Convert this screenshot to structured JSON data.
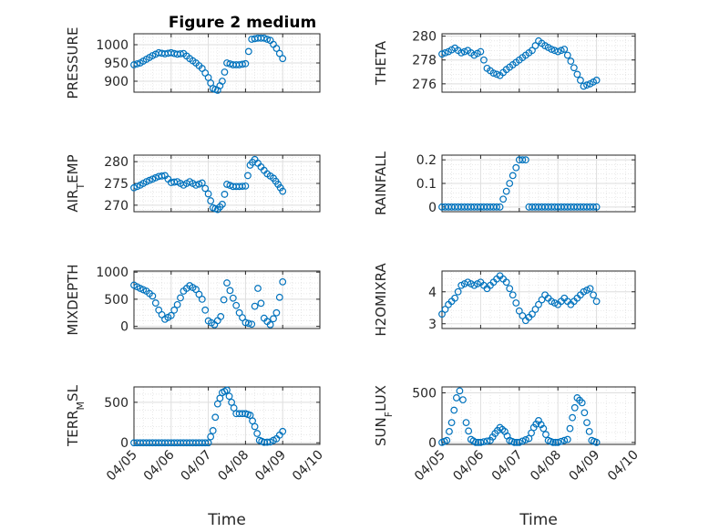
{
  "figure_title": "Figure 2 medium",
  "chart_data": [
    {
      "type": "scatter",
      "ylabel": "PRESSURE",
      "xlabel": "",
      "ylim": [
        870,
        1030
      ],
      "yticks": [
        900,
        950,
        1000
      ],
      "xlim": [
        "2016-04-05",
        "2016-04-10"
      ],
      "xticks": [
        "04/05",
        "04/06",
        "04/07",
        "04/08",
        "04/09",
        "04/10"
      ],
      "grid": true,
      "x": [
        "2016-04-05 00:00",
        "2016-04-05 04:00",
        "2016-04-05 08:00",
        "2016-04-05 12:00",
        "2016-04-05 16:00",
        "2016-04-05 20:00",
        "2016-04-06 00:00",
        "2016-04-06 04:00",
        "2016-04-06 08:00",
        "2016-04-06 12:00",
        "2016-04-06 16:00",
        "2016-04-06 20:00",
        "2016-04-07 00:00",
        "2016-04-07 03:00",
        "2016-04-07 06:00",
        "2016-04-07 09:00",
        "2016-04-07 12:00",
        "2016-04-07 16:00",
        "2016-04-07 20:00",
        "2016-04-08 00:00",
        "2016-04-08 04:00",
        "2016-04-08 08:00",
        "2016-04-08 12:00",
        "2016-04-08 16:00",
        "2016-04-08 20:00",
        "2016-04-09 00:00"
      ],
      "y": [
        945,
        950,
        960,
        970,
        978,
        975,
        978,
        974,
        976,
        962,
        950,
        935,
        910,
        880,
        875,
        900,
        950,
        945,
        945,
        948,
        1015,
        1018,
        1018,
        1012,
        990,
        962
      ]
    },
    {
      "type": "scatter",
      "ylabel": "THETA",
      "xlabel": "",
      "ylim": [
        275.3,
        280.2
      ],
      "yticks": [
        276,
        278,
        280
      ],
      "xlim": [
        "2016-04-05",
        "2016-04-10"
      ],
      "xticks": [
        "04/05",
        "04/06",
        "04/07",
        "04/08",
        "04/09",
        "04/10"
      ],
      "grid": true,
      "x": [
        "2016-04-05 00:00",
        "2016-04-05 04:00",
        "2016-04-05 08:00",
        "2016-04-05 12:00",
        "2016-04-05 16:00",
        "2016-04-05 20:00",
        "2016-04-06 00:00",
        "2016-04-06 04:00",
        "2016-04-06 08:00",
        "2016-04-06 12:00",
        "2016-04-06 16:00",
        "2016-04-06 20:00",
        "2016-04-07 00:00",
        "2016-04-07 04:00",
        "2016-04-07 08:00",
        "2016-04-07 12:00",
        "2016-04-07 16:00",
        "2016-04-07 20:00",
        "2016-04-08 00:00",
        "2016-04-08 04:00",
        "2016-04-08 08:00",
        "2016-04-08 12:00",
        "2016-04-08 16:00",
        "2016-04-08 20:00",
        "2016-04-09 00:00"
      ],
      "y": [
        278.5,
        278.7,
        279.0,
        278.6,
        278.8,
        278.4,
        278.7,
        277.3,
        276.9,
        276.7,
        277.2,
        277.6,
        278.0,
        278.4,
        278.8,
        279.6,
        279.2,
        278.9,
        278.7,
        278.9,
        277.9,
        276.8,
        275.8,
        276.0,
        276.3
      ]
    },
    {
      "type": "scatter",
      "ylabel": "AIR_TEMP",
      "xlabel": "",
      "ylim": [
        268.5,
        281.5
      ],
      "yticks": [
        270,
        275,
        280
      ],
      "xlim": [
        "2016-04-05",
        "2016-04-10"
      ],
      "xticks": [
        "04/05",
        "04/06",
        "04/07",
        "04/08",
        "04/09",
        "04/10"
      ],
      "grid": true,
      "x": [
        "2016-04-05 00:00",
        "2016-04-05 04:00",
        "2016-04-05 08:00",
        "2016-04-05 12:00",
        "2016-04-05 16:00",
        "2016-04-05 20:00",
        "2016-04-06 00:00",
        "2016-04-06 04:00",
        "2016-04-06 08:00",
        "2016-04-06 12:00",
        "2016-04-06 16:00",
        "2016-04-06 20:00",
        "2016-04-07 00:00",
        "2016-04-07 03:00",
        "2016-04-07 06:00",
        "2016-04-07 09:00",
        "2016-04-07 12:00",
        "2016-04-07 16:00",
        "2016-04-07 20:00",
        "2016-04-08 00:00",
        "2016-04-08 03:00",
        "2016-04-08 06:00",
        "2016-04-08 10:00",
        "2016-04-08 14:00",
        "2016-04-08 18:00",
        "2016-04-08 21:00",
        "2016-04-09 00:00"
      ],
      "y": [
        274.0,
        274.6,
        275.4,
        276.0,
        276.6,
        276.8,
        275.2,
        275.4,
        274.6,
        275.4,
        274.6,
        275.1,
        272.6,
        269.4,
        269.0,
        270.2,
        274.8,
        274.3,
        274.3,
        274.4,
        279.2,
        280.5,
        278.8,
        277.2,
        276.2,
        274.8,
        273.2
      ]
    },
    {
      "type": "scatter",
      "ylabel": "RAINFALL",
      "xlabel": "",
      "ylim": [
        -0.02,
        0.22
      ],
      "yticks": [
        0,
        0.1,
        0.2
      ],
      "ytick_labels": [
        "0",
        "0.1",
        "0.2"
      ],
      "xlim": [
        "2016-04-05",
        "2016-04-10"
      ],
      "xticks": [
        "04/05",
        "04/06",
        "04/07",
        "04/08",
        "04/09",
        "04/10"
      ],
      "grid": true,
      "x": [
        "2016-04-05 00:00",
        "2016-04-05 12:00",
        "2016-04-06 00:00",
        "2016-04-06 12:00",
        "2016-04-07 00:00",
        "2016-04-07 02:00",
        "2016-04-07 04:00",
        "2016-04-07 06:00",
        "2016-04-07 12:00",
        "2016-04-08 00:00",
        "2016-04-08 12:00",
        "2016-04-09 00:00"
      ],
      "y": [
        0,
        0,
        0,
        0,
        0.2,
        0.2,
        0.2,
        0,
        0,
        0,
        0,
        0
      ]
    },
    {
      "type": "scatter",
      "ylabel": "MIXDEPTH",
      "xlabel": "",
      "ylim": [
        -40,
        1020
      ],
      "yticks": [
        0,
        500,
        1000
      ],
      "xlim": [
        "2016-04-05",
        "2016-04-10"
      ],
      "xticks": [
        "04/05",
        "04/06",
        "04/07",
        "04/08",
        "04/09",
        "04/10"
      ],
      "grid": true,
      "x": [
        "2016-04-05 00:00",
        "2016-04-05 04:00",
        "2016-04-05 08:00",
        "2016-04-05 12:00",
        "2016-04-05 16:00",
        "2016-04-05 20:00",
        "2016-04-06 00:00",
        "2016-04-06 04:00",
        "2016-04-06 08:00",
        "2016-04-06 12:00",
        "2016-04-06 16:00",
        "2016-04-06 20:00",
        "2016-04-07 00:00",
        "2016-04-07 04:00",
        "2016-04-07 08:00",
        "2016-04-07 12:00",
        "2016-04-07 16:00",
        "2016-04-07 20:00",
        "2016-04-08 00:00",
        "2016-04-08 04:00",
        "2016-04-08 08:00",
        "2016-04-08 12:00",
        "2016-04-08 16:00",
        "2016-04-08 20:00",
        "2016-04-09 00:00"
      ],
      "y": [
        760,
        700,
        650,
        560,
        300,
        130,
        200,
        400,
        650,
        750,
        680,
        500,
        100,
        30,
        180,
        800,
        520,
        250,
        70,
        40,
        700,
        150,
        30,
        250,
        820
      ]
    },
    {
      "type": "scatter",
      "ylabel": "H2OMIXRA",
      "xlabel": "",
      "ylim": [
        2.85,
        4.65
      ],
      "yticks": [
        3,
        4
      ],
      "xlim": [
        "2016-04-05",
        "2016-04-10"
      ],
      "xticks": [
        "04/05",
        "04/06",
        "04/07",
        "04/08",
        "04/09",
        "04/10"
      ],
      "grid": true,
      "x": [
        "2016-04-05 00:00",
        "2016-04-05 04:00",
        "2016-04-05 08:00",
        "2016-04-05 12:00",
        "2016-04-05 16:00",
        "2016-04-05 20:00",
        "2016-04-06 00:00",
        "2016-04-06 04:00",
        "2016-04-06 08:00",
        "2016-04-06 12:00",
        "2016-04-06 16:00",
        "2016-04-06 20:00",
        "2016-04-07 00:00",
        "2016-04-07 04:00",
        "2016-04-07 08:00",
        "2016-04-07 12:00",
        "2016-04-07 16:00",
        "2016-04-07 20:00",
        "2016-04-08 00:00",
        "2016-04-08 04:00",
        "2016-04-08 08:00",
        "2016-04-08 12:00",
        "2016-04-08 16:00",
        "2016-04-08 20:00",
        "2016-04-09 00:00"
      ],
      "y": [
        3.3,
        3.6,
        3.8,
        4.2,
        4.3,
        4.2,
        4.3,
        4.1,
        4.3,
        4.5,
        4.3,
        3.9,
        3.4,
        3.1,
        3.3,
        3.6,
        3.9,
        3.7,
        3.6,
        3.8,
        3.6,
        3.8,
        4.0,
        4.1,
        3.7
      ]
    },
    {
      "type": "scatter",
      "ylabel": "TERR_MSL",
      "xlabel": "Time",
      "ylim": [
        -20,
        690
      ],
      "yticks": [
        0,
        500
      ],
      "xlim": [
        "2016-04-05",
        "2016-04-10"
      ],
      "xticks": [
        "04/05",
        "04/06",
        "04/07",
        "04/08",
        "04/09",
        "04/10"
      ],
      "grid": true,
      "x": [
        "2016-04-05 00:00",
        "2016-04-05 12:00",
        "2016-04-06 00:00",
        "2016-04-06 12:00",
        "2016-04-07 00:00",
        "2016-04-07 03:00",
        "2016-04-07 06:00",
        "2016-04-07 09:00",
        "2016-04-07 12:00",
        "2016-04-07 15:00",
        "2016-04-07 18:00",
        "2016-04-08 00:00",
        "2016-04-08 03:00",
        "2016-04-08 06:00",
        "2016-04-08 09:00",
        "2016-04-08 12:00",
        "2016-04-08 16:00",
        "2016-04-08 20:00",
        "2016-04-09 00:00"
      ],
      "y": [
        0,
        0,
        0,
        0,
        0,
        150,
        480,
        620,
        650,
        500,
        360,
        360,
        340,
        200,
        30,
        5,
        10,
        50,
        140
      ]
    },
    {
      "type": "scatter",
      "ylabel": "SUN_FLUX",
      "xlabel": "Time",
      "ylim": [
        -20,
        560
      ],
      "yticks": [
        0,
        500
      ],
      "xlim": [
        "2016-04-05",
        "2016-04-10"
      ],
      "xticks": [
        "04/05",
        "04/06",
        "04/07",
        "04/08",
        "04/09",
        "04/10"
      ],
      "grid": true,
      "x": [
        "2016-04-05 00:00",
        "2016-04-05 03:00",
        "2016-04-05 06:00",
        "2016-04-05 09:00",
        "2016-04-05 11:00",
        "2016-04-05 13:00",
        "2016-04-05 15:00",
        "2016-04-05 18:00",
        "2016-04-05 21:00",
        "2016-04-06 00:00",
        "2016-04-06 06:00",
        "2016-04-06 09:00",
        "2016-04-06 12:00",
        "2016-04-06 15:00",
        "2016-04-06 18:00",
        "2016-04-06 21:00",
        "2016-04-07 00:00",
        "2016-04-07 06:00",
        "2016-04-07 09:00",
        "2016-04-07 12:00",
        "2016-04-07 15:00",
        "2016-04-07 18:00",
        "2016-04-07 21:00",
        "2016-04-08 00:00",
        "2016-04-08 06:00",
        "2016-04-08 09:00",
        "2016-04-08 12:00",
        "2016-04-08 15:00",
        "2016-04-08 18:00",
        "2016-04-08 21:00",
        "2016-04-09 00:00"
      ],
      "y": [
        0,
        20,
        200,
        450,
        520,
        430,
        200,
        30,
        0,
        0,
        20,
        90,
        150,
        110,
        20,
        0,
        0,
        40,
        150,
        220,
        140,
        20,
        0,
        0,
        30,
        250,
        450,
        400,
        200,
        20,
        0
      ]
    }
  ]
}
